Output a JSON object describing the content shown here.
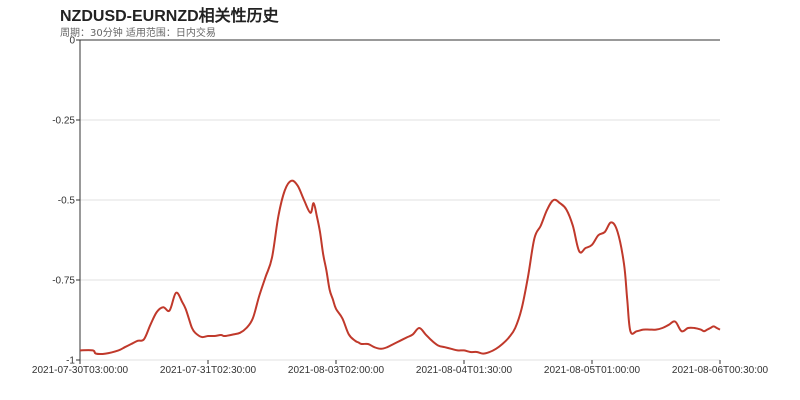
{
  "chart_data": {
    "type": "line",
    "title": "NZDUSD-EURNZD相关性历史",
    "subtitle": "周期：30分钟 适用范围：日内交易",
    "xlabel": "",
    "ylabel": "",
    "ylim": [
      -1,
      0
    ],
    "grid": true,
    "y_ticks": [
      "0",
      "-0.25",
      "-0.5",
      "-0.75",
      "-1"
    ],
    "y_tick_values": [
      0,
      -0.25,
      -0.5,
      -0.75,
      -1
    ],
    "x_ticks": [
      "2021-07-30T03:00:00",
      "2021-07-31T02:30:00",
      "2021-08-03T02:00:00",
      "2021-08-04T01:30:00",
      "2021-08-05T01:00:00",
      "2021-08-06T00:30:00"
    ],
    "x_tick_positions": [
      0,
      20,
      40,
      60,
      80,
      100
    ],
    "series": [
      {
        "color": "#c0392b",
        "x": [
          0,
          2,
          2.5,
          4,
          6,
          7,
          8,
          9,
          10,
          11,
          12,
          13,
          14,
          15,
          16,
          16.5,
          17,
          17.5,
          18,
          19,
          20,
          21,
          22,
          22.5,
          23,
          24,
          25,
          26,
          27,
          28,
          29,
          30,
          31,
          32,
          33,
          34,
          35,
          36,
          36.5,
          37,
          37.5,
          38,
          38.5,
          39,
          39.5,
          40,
          41,
          42,
          43,
          43.5,
          44,
          45,
          46,
          47,
          48,
          49,
          50,
          51,
          52,
          53,
          54,
          55,
          56,
          57,
          58,
          59,
          60,
          61,
          62,
          63,
          64,
          65,
          66,
          67,
          68,
          69,
          70,
          71,
          72,
          73,
          74,
          75,
          76,
          77,
          78,
          79,
          80,
          81,
          82,
          83,
          84,
          85,
          85.5,
          86,
          87,
          88,
          89,
          90,
          91,
          92,
          93,
          94,
          95,
          96,
          97,
          97.5,
          98,
          98.5,
          99,
          99.5,
          100
        ],
        "values": [
          -0.97,
          -0.97,
          -0.98,
          -0.98,
          -0.97,
          -0.96,
          -0.95,
          -0.94,
          -0.935,
          -0.89,
          -0.85,
          -0.835,
          -0.845,
          -0.79,
          -0.82,
          -0.84,
          -0.87,
          -0.9,
          -0.915,
          -0.928,
          -0.925,
          -0.925,
          -0.922,
          -0.925,
          -0.924,
          -0.92,
          -0.915,
          -0.9,
          -0.87,
          -0.8,
          -0.74,
          -0.68,
          -0.55,
          -0.47,
          -0.44,
          -0.455,
          -0.5,
          -0.54,
          -0.51,
          -0.55,
          -0.6,
          -0.67,
          -0.72,
          -0.78,
          -0.81,
          -0.84,
          -0.87,
          -0.92,
          -0.94,
          -0.945,
          -0.95,
          -0.95,
          -0.96,
          -0.965,
          -0.96,
          -0.95,
          -0.94,
          -0.93,
          -0.92,
          -0.9,
          -0.92,
          -0.94,
          -0.955,
          -0.96,
          -0.965,
          -0.97,
          -0.97,
          -0.975,
          -0.975,
          -0.98,
          -0.975,
          -0.965,
          -0.95,
          -0.93,
          -0.9,
          -0.84,
          -0.74,
          -0.62,
          -0.58,
          -0.53,
          -0.5,
          -0.51,
          -0.53,
          -0.58,
          -0.66,
          -0.65,
          -0.64,
          -0.61,
          -0.6,
          -0.57,
          -0.6,
          -0.7,
          -0.81,
          -0.91,
          -0.91,
          -0.905,
          -0.905,
          -0.905,
          -0.9,
          -0.89,
          -0.88,
          -0.91,
          -0.9,
          -0.9,
          -0.905,
          -0.91,
          -0.905,
          -0.9,
          -0.895,
          -0.9,
          -0.905
        ]
      }
    ]
  }
}
